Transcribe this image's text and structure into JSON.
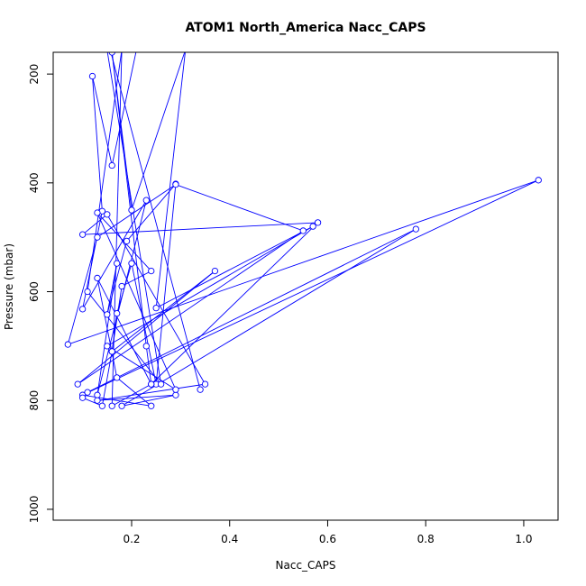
{
  "chart_data": {
    "type": "line",
    "title": "ATOM1 North_America Nacc_CAPS",
    "xlabel": "Nacc_CAPS",
    "ylabel": "Pressure (mbar)",
    "xlim": [
      0.04,
      1.07
    ],
    "ylim": [
      1020,
      160
    ],
    "y_reversed": true,
    "x_ticks": [
      0.2,
      0.4,
      0.6,
      0.8,
      1.0
    ],
    "x_tick_labels": [
      "0.2",
      "0.4",
      "0.6",
      "0.8",
      "1.0"
    ],
    "y_ticks": [
      200,
      400,
      600,
      800,
      1000
    ],
    "y_tick_labels": [
      "200",
      "400",
      "600",
      "800",
      "1000"
    ],
    "series_color": "#0000ff",
    "grid": false,
    "legend": "none",
    "series": [
      {
        "x": [
          0.21,
          0.16,
          0.12,
          0.14,
          0.1,
          0.23,
          0.13,
          0.17,
          0.15,
          0.19,
          0.29,
          0.25,
          0.2,
          0.17,
          0.16,
          0.37,
          0.09,
          0.55,
          0.29,
          0.13,
          0.07,
          1.03,
          0.1,
          0.24,
          0.17,
          0.13,
          0.24,
          0.58,
          0.1,
          0.15,
          0.35,
          0.13,
          0.29,
          0.18,
          0.78,
          0.11,
          0.1,
          0.14,
          0.16,
          0.18,
          0.24,
          0.13,
          0.29,
          0.15,
          0.57,
          0.25,
          0.31,
          0.2,
          0.16,
          0.23,
          0.24,
          0.16,
          0.18,
          0.11,
          0.26,
          0.14,
          0.34
        ],
        "y": [
          155,
          368,
          204,
          452,
          632,
          432,
          790,
          548,
          642,
          507,
          402,
          770,
          548,
          640,
          710,
          562,
          770,
          488,
          403,
          500,
          697,
          395,
          790,
          810,
          758,
          575,
          770,
          473,
          495,
          458,
          770,
          800,
          790,
          810,
          485,
          785,
          795,
          810,
          710,
          590,
          562,
          455,
          780,
          700,
          480,
          630,
          155,
          450,
          160,
          700,
          770,
          810,
          155,
          600,
          770,
          100,
          780
        ]
      }
    ]
  }
}
